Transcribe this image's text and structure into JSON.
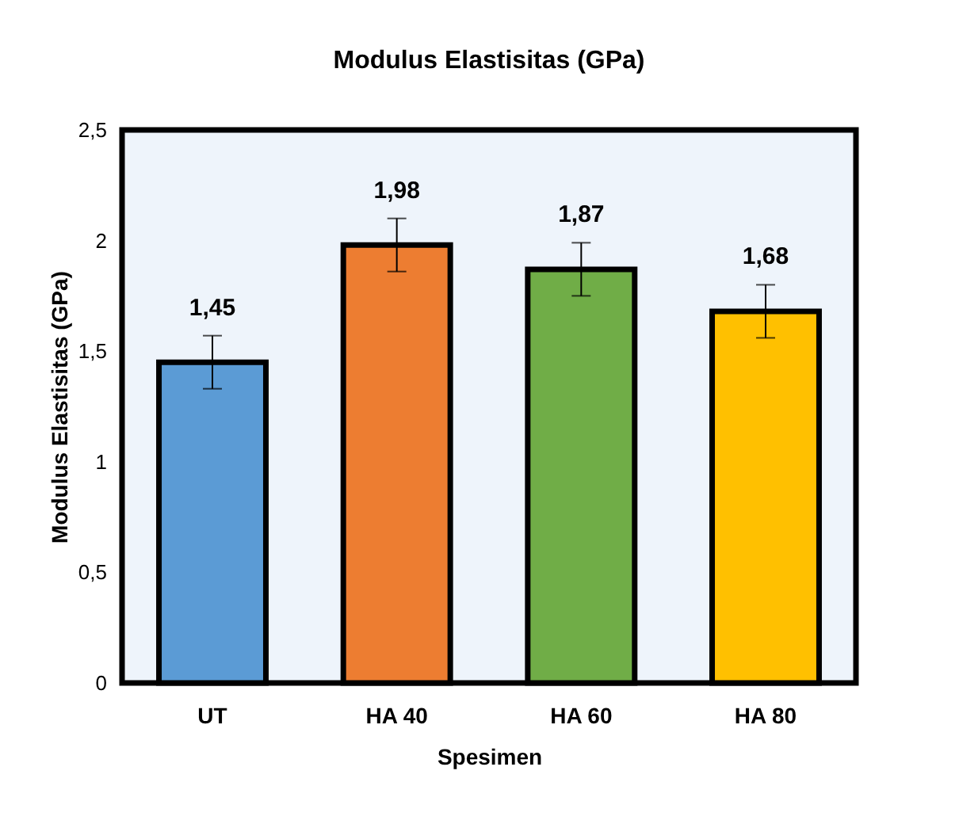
{
  "chart_data": {
    "type": "bar",
    "title": "Modulus Elastisitas (GPa)",
    "xlabel": "Spesimen",
    "ylabel": "Modulus Elastisitas (GPa)",
    "categories": [
      "UT",
      "HA 40",
      "HA 60",
      "HA 80"
    ],
    "values": [
      1.45,
      1.98,
      1.87,
      1.68
    ],
    "colors": [
      "#5b9bd5",
      "#ed7d31",
      "#70ad47",
      "#ffc000"
    ],
    "errors": [
      0.12,
      0.12,
      0.12,
      0.12
    ],
    "value_labels": [
      "1,45",
      "1,98",
      "1,87",
      "1,68"
    ],
    "ylim": [
      0,
      2.5
    ],
    "yticks": [
      0,
      {
        "value": 0.5,
        "label": "0,5"
      },
      1,
      {
        "value": 1.5,
        "label": "1,5"
      },
      2,
      {
        "value": 2.5,
        "label": "2,5"
      }
    ],
    "grid": false
  }
}
